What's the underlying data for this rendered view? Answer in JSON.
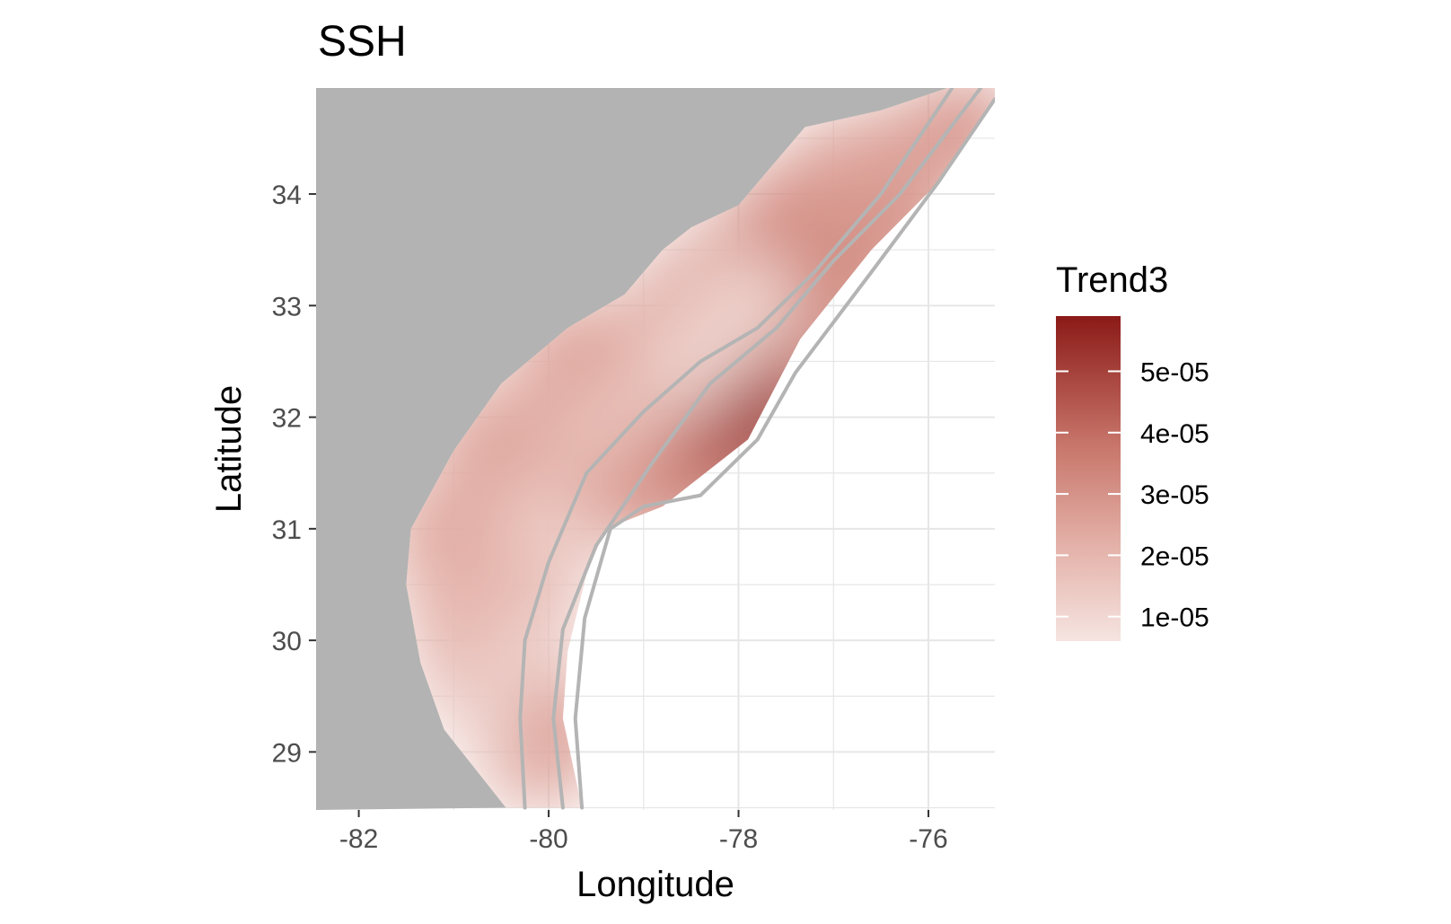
{
  "title": "SSH",
  "axes": {
    "xlabel": "Longitude",
    "ylabel": "Latitude",
    "xlim": [
      -82.45,
      -75.3
    ],
    "ylim": [
      28.48,
      34.95
    ],
    "xticks": [
      {
        "value": -82,
        "label": "-82"
      },
      {
        "value": -80,
        "label": "-80"
      },
      {
        "value": -78,
        "label": "-78"
      },
      {
        "value": -76,
        "label": "-76"
      }
    ],
    "yticks": [
      {
        "value": 29,
        "label": "29"
      },
      {
        "value": 30,
        "label": "30"
      },
      {
        "value": 31,
        "label": "31"
      },
      {
        "value": 32,
        "label": "32"
      },
      {
        "value": 33,
        "label": "33"
      },
      {
        "value": 34,
        "label": "34"
      }
    ],
    "grid": true
  },
  "legend": {
    "title": "Trend3",
    "placement": "right",
    "range": [
      6e-06,
      5.9e-05
    ],
    "breaks": [
      {
        "value": 1e-05,
        "label": "1e-05"
      },
      {
        "value": 2e-05,
        "label": "2e-05"
      },
      {
        "value": 3e-05,
        "label": "3e-05"
      },
      {
        "value": 4e-05,
        "label": "4e-05"
      },
      {
        "value": 5e-05,
        "label": "5e-05"
      }
    ]
  },
  "colors": {
    "land": "#b3b3b3",
    "panel": "#ffffff",
    "grid": "#e6e6e6",
    "contour": "#b4b4b4",
    "scale_low": "#f6e4e1",
    "scale_high": "#8b1a17"
  },
  "chart_data": {
    "type": "heatmap",
    "variable": "Trend3",
    "title": "SSH",
    "xlabel": "Longitude",
    "ylabel": "Latitude",
    "xlim": [
      -82.45,
      -75.3
    ],
    "ylim": [
      28.48,
      34.95
    ],
    "region": [
      [
        -80.45,
        28.5
      ],
      [
        -81.1,
        29.2
      ],
      [
        -81.35,
        29.8
      ],
      [
        -81.5,
        30.5
      ],
      [
        -81.45,
        31.0
      ],
      [
        -81.0,
        31.7
      ],
      [
        -80.5,
        32.3
      ],
      [
        -79.8,
        32.8
      ],
      [
        -79.2,
        33.1
      ],
      [
        -78.8,
        33.5
      ],
      [
        -78.5,
        33.7
      ],
      [
        -78.0,
        33.9
      ],
      [
        -77.6,
        34.3
      ],
      [
        -77.3,
        34.6
      ],
      [
        -76.5,
        34.75
      ],
      [
        -75.8,
        34.95
      ],
      [
        -75.3,
        34.95
      ],
      [
        -75.3,
        34.85
      ],
      [
        -75.9,
        34.1
      ],
      [
        -76.6,
        33.5
      ],
      [
        -77.35,
        32.7
      ],
      [
        -77.9,
        31.8
      ],
      [
        -78.8,
        31.2
      ],
      [
        -79.4,
        31.0
      ],
      [
        -79.6,
        30.6
      ],
      [
        -79.8,
        29.9
      ],
      [
        -79.85,
        29.3
      ],
      [
        -79.65,
        28.5
      ]
    ],
    "field_points": [
      {
        "lon": -77.7,
        "lat": 32.0,
        "trend": 5.8e-05
      },
      {
        "lon": -78.2,
        "lat": 31.7,
        "trend": 5e-05
      },
      {
        "lon": -78.6,
        "lat": 31.4,
        "trend": 4e-05
      },
      {
        "lon": -77.4,
        "lat": 32.6,
        "trend": 4.2e-05
      },
      {
        "lon": -76.9,
        "lat": 33.1,
        "trend": 3.3e-05
      },
      {
        "lon": -76.3,
        "lat": 33.8,
        "trend": 3.2e-05
      },
      {
        "lon": -75.6,
        "lat": 34.6,
        "trend": 3e-05
      },
      {
        "lon": -76.5,
        "lat": 34.3,
        "trend": 2.6e-05
      },
      {
        "lon": -77.6,
        "lat": 33.7,
        "trend": 3.2e-05
      },
      {
        "lon": -78.5,
        "lat": 33.1,
        "trend": 2.6e-05
      },
      {
        "lon": -77.9,
        "lat": 33.0,
        "trend": 1e-05
      },
      {
        "lon": -78.5,
        "lat": 32.5,
        "trend": 1.1e-05
      },
      {
        "lon": -79.4,
        "lat": 31.9,
        "trend": 1.5e-05
      },
      {
        "lon": -80.0,
        "lat": 31.0,
        "trend": 1.3e-05
      },
      {
        "lon": -80.4,
        "lat": 30.0,
        "trend": 1.2e-05
      },
      {
        "lon": -80.45,
        "lat": 29.3,
        "trend": 9e-06
      },
      {
        "lon": -81.0,
        "lat": 30.3,
        "trend": 2e-05
      },
      {
        "lon": -81.2,
        "lat": 31.0,
        "trend": 2.3e-05
      },
      {
        "lon": -80.7,
        "lat": 31.8,
        "trend": 2.4e-05
      },
      {
        "lon": -79.8,
        "lat": 32.6,
        "trend": 2.5e-05
      },
      {
        "lon": -79.1,
        "lat": 31.3,
        "trend": 2.8e-05
      },
      {
        "lon": -79.9,
        "lat": 29.2,
        "trend": 2.6e-05
      }
    ],
    "contours": [
      [
        [
          -80.25,
          28.5
        ],
        [
          -80.3,
          29.3
        ],
        [
          -80.25,
          30.0
        ],
        [
          -80.0,
          30.7
        ],
        [
          -79.6,
          31.5
        ],
        [
          -79.0,
          32.05
        ],
        [
          -78.4,
          32.5
        ],
        [
          -77.8,
          32.8
        ],
        [
          -77.2,
          33.3
        ],
        [
          -76.5,
          34.0
        ],
        [
          -75.75,
          34.95
        ]
      ],
      [
        [
          -79.85,
          28.5
        ],
        [
          -79.95,
          29.3
        ],
        [
          -79.85,
          30.1
        ],
        [
          -79.5,
          30.85
        ],
        [
          -78.9,
          31.6
        ],
        [
          -78.3,
          32.3
        ],
        [
          -77.6,
          32.8
        ],
        [
          -77.0,
          33.4
        ],
        [
          -76.3,
          34.0
        ],
        [
          -75.45,
          34.95
        ]
      ],
      [
        [
          -79.65,
          28.5
        ],
        [
          -79.72,
          29.3
        ],
        [
          -79.62,
          30.2
        ],
        [
          -79.35,
          31.0
        ],
        [
          -79.0,
          31.2
        ],
        [
          -78.4,
          31.3
        ],
        [
          -77.8,
          31.8
        ],
        [
          -77.4,
          32.4
        ],
        [
          -76.6,
          33.3
        ],
        [
          -75.9,
          34.1
        ],
        [
          -75.3,
          34.85
        ]
      ]
    ]
  }
}
